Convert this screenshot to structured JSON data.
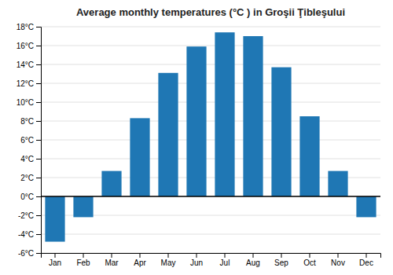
{
  "chart_data": {
    "type": "bar",
    "title": "Average monthly temperatures (°C ) in Groşii Ţibleşului",
    "categories": [
      "Jan",
      "Feb",
      "Mar",
      "Apr",
      "May",
      "Jun",
      "Jul",
      "Aug",
      "Sep",
      "Oct",
      "Nov",
      "Dec"
    ],
    "values": [
      -4.8,
      -2.2,
      2.7,
      8.3,
      13.1,
      15.9,
      17.4,
      17.0,
      13.7,
      8.5,
      2.7,
      -2.2
    ],
    "ylim": [
      -6,
      18
    ],
    "yticks": [
      {
        "value": -6,
        "label": "-6°C"
      },
      {
        "value": -4,
        "label": "-4°C"
      },
      {
        "value": -2,
        "label": "-2°C"
      },
      {
        "value": 0,
        "label": "0°C"
      },
      {
        "value": 2,
        "label": "2°C"
      },
      {
        "value": 4,
        "label": "4°C"
      },
      {
        "value": 6,
        "label": "6°C"
      },
      {
        "value": 8,
        "label": "8°C"
      },
      {
        "value": 10,
        "label": "10°C"
      },
      {
        "value": 12,
        "label": "12°C"
      },
      {
        "value": 14,
        "label": "14°C"
      },
      {
        "value": 16,
        "label": "16°C"
      },
      {
        "value": 18,
        "label": "18°C"
      }
    ],
    "grid": true
  }
}
